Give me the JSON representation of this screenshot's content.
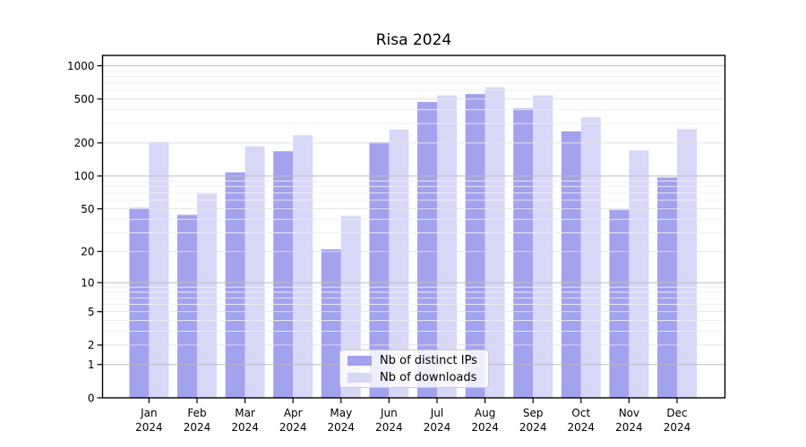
{
  "chart_data": {
    "type": "bar",
    "title": "Risa 2024",
    "categories": [
      "Jan 2024",
      "Feb 2024",
      "Mar 2024",
      "Apr 2024",
      "May 2024",
      "Jun 2024",
      "Jul 2024",
      "Aug 2024",
      "Sep 2024",
      "Oct 2024",
      "Nov 2024",
      "Dec 2024"
    ],
    "series": [
      {
        "name": "Nb of distinct IPs",
        "color": "#a2a2ee",
        "values": [
          51,
          44,
          108,
          168,
          21,
          203,
          470,
          555,
          410,
          255,
          49,
          97
        ]
      },
      {
        "name": "Nb of downloads",
        "color": "#d7d7f8",
        "values": [
          204,
          69,
          187,
          235,
          43,
          264,
          540,
          640,
          540,
          342,
          171,
          267
        ]
      }
    ],
    "xlabel": "",
    "ylabel": "",
    "yscale": "log1p",
    "yticks": [
      0,
      1,
      2,
      5,
      10,
      20,
      50,
      100,
      200,
      500,
      1000
    ],
    "minor_yticks_labeled": [
      2,
      5,
      20,
      50,
      200,
      500
    ],
    "ylim": [
      0,
      1240
    ],
    "grid": "on",
    "legend_position": "lower center",
    "colors": {
      "major_grid": "#bdbdbd",
      "minor_grid": "#efefef",
      "minor_grid_labeled": "#e2e2e6",
      "axis": "#000000",
      "text": "#000000",
      "background": "#ffffff"
    }
  }
}
